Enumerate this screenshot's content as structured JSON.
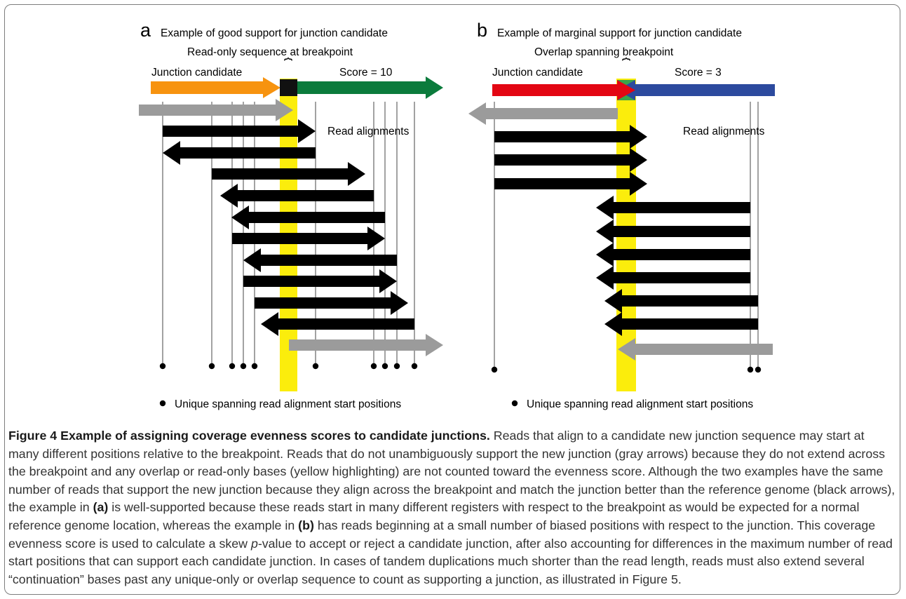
{
  "colors": {
    "highlight": "#fbed0c",
    "read_supporting": "#000000",
    "read_nonsupporting": "#9b9b9b",
    "guide_line": "#8a8a8a",
    "panel_a": {
      "left_segment": "#f7930f",
      "right_segment": "#0b7b3c",
      "breakpoint_block": "#111111"
    },
    "panel_b": {
      "left_segment": "#e30613",
      "right_segment": "#2c4a9e",
      "overlap_green": "#3aa44a",
      "overlap_blue": "#2c4a9e"
    }
  },
  "panels": [
    {
      "id": "a",
      "letter": "a",
      "title": "Example of good support for junction candidate",
      "breakpoint_label": "Read-only sequence at breakpoint",
      "brace": "⏞",
      "candidate_label": "Junction candidate",
      "score_label": "Score = 10",
      "reads_label": "Read alignments",
      "legend_text": "Unique spanning read alignment start positions",
      "breakpoint_kind": "read-only",
      "unique_start_count": 10
    },
    {
      "id": "b",
      "letter": "b",
      "title": "Example of marginal support for junction candidate",
      "breakpoint_label": "Overlap spanning breakpoint",
      "brace": "⏞",
      "candidate_label": "Junction candidate",
      "score_label": "Score = 3",
      "reads_label": "Read alignments",
      "legend_text": "Unique spanning read alignment start positions",
      "breakpoint_kind": "overlap",
      "unique_start_count": 3
    }
  ],
  "caption": {
    "title": "Figure 4 Example of assigning coverage evenness scores to candidate junctions.",
    "seg1": " Reads that align to a candidate new junction sequence may start at many different positions relative to the breakpoint. Reads that do not unambiguously support the new junction (gray arrows) because they do not extend across the breakpoint and any overlap or read-only bases (yellow highlighting) are not counted toward the evenness score. Although the two examples have the same number of reads that support the new junction because they align across the breakpoint and match the junction better than the reference genome (black arrows), the example in ",
    "ref_a": "(a)",
    "seg2": " is well-supported because these reads start in many different registers with respect to the breakpoint as would be expected for a normal reference genome location, whereas the example in ",
    "ref_b": "(b)",
    "seg3": " has reads beginning at a small number of biased positions with respect to the junction. This coverage evenness score is used to calculate a skew ",
    "pval_italic": "p",
    "seg4": "-value to accept or reject a candidate junction, after also accounting for differences in the maximum number of read start positions that can support each candidate junction. In cases of tandem duplications much shorter than the read length, reads must also extend several “continuation” bases past any unique-only or overlap sequence to count as supporting a junction, as illustrated in Figure 5."
  }
}
